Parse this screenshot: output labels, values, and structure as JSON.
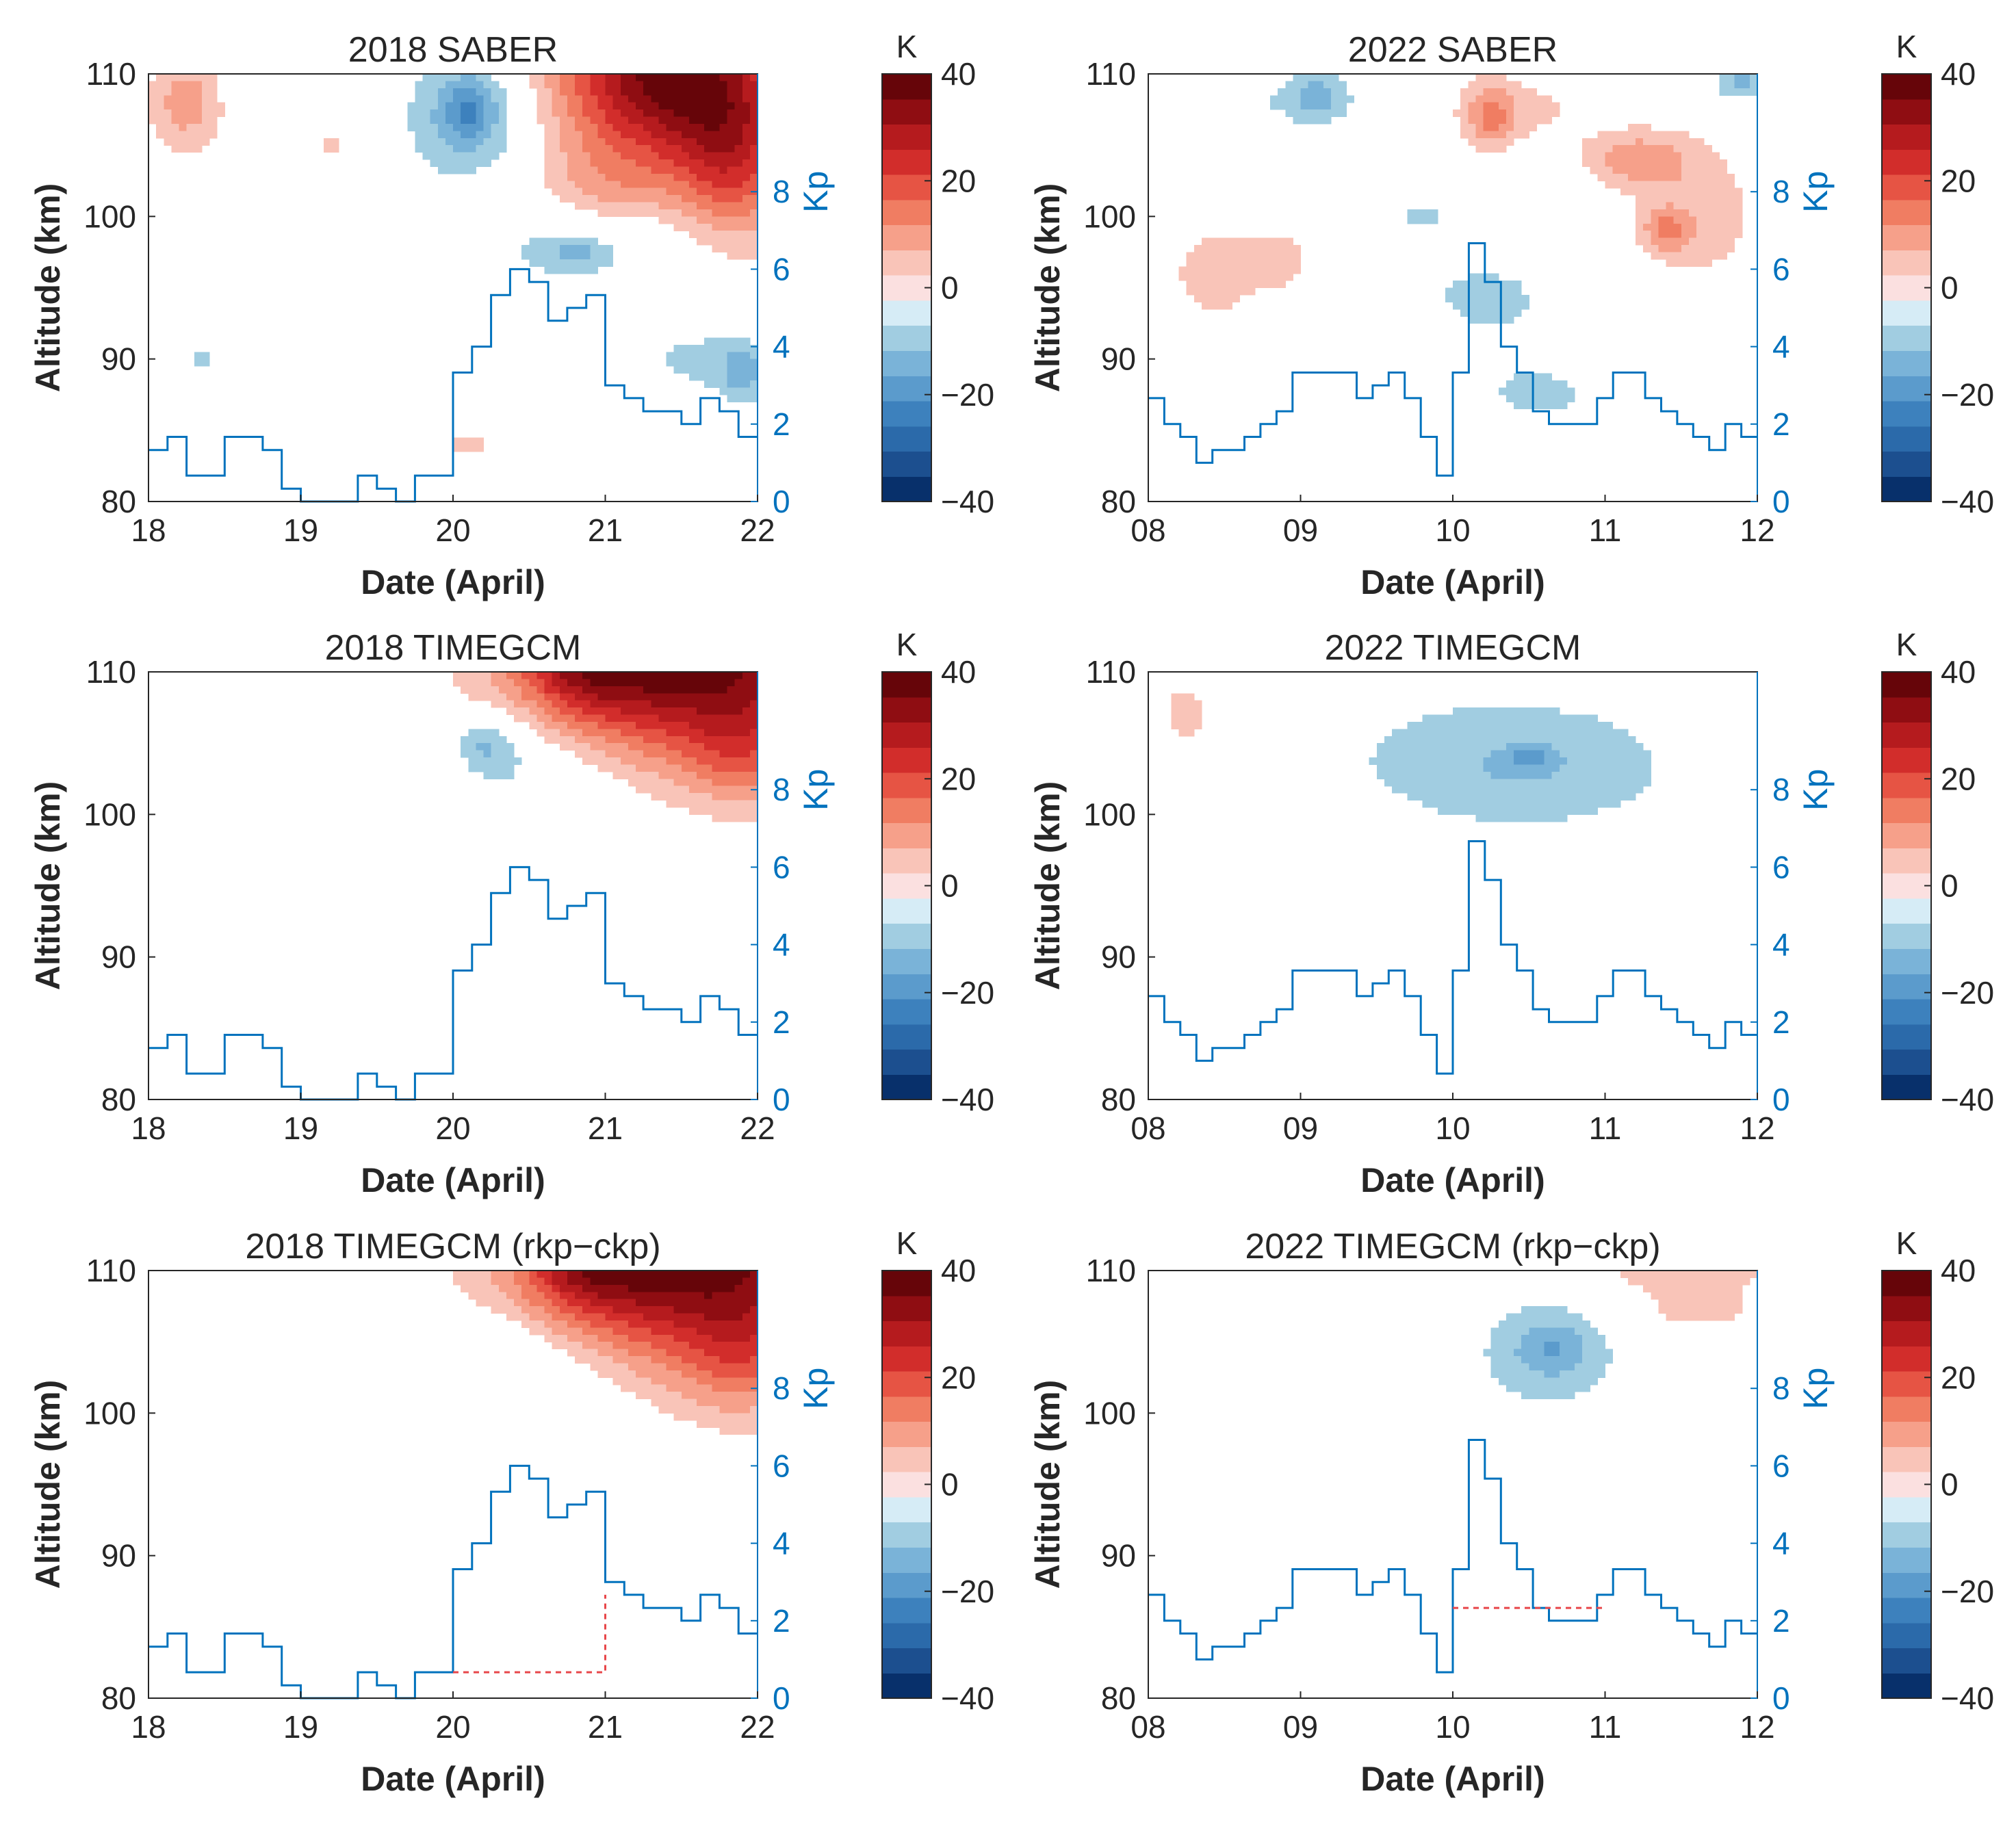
{
  "figure": {
    "colorbar": {
      "unit": "K",
      "levels": [
        -40,
        -35,
        -30,
        -25,
        -20,
        -15,
        -10,
        -5,
        0,
        5,
        10,
        15,
        20,
        25,
        30,
        35,
        40
      ],
      "ticks": [
        40,
        20,
        0,
        -20,
        -40
      ],
      "tick_labels": [
        "40",
        "20",
        "0",
        "−20",
        "−40"
      ],
      "colors": [
        "#08306b",
        "#1c4f8f",
        "#2b6aaa",
        "#3d81bd",
        "#5b9bcc",
        "#7ab3d8",
        "#a1cde1",
        "#d6ecf6",
        "#fbe0e0",
        "#f9c4b8",
        "#f6a08a",
        "#f07d62",
        "#e65444",
        "#d22d2b",
        "#b51b1e",
        "#8f0d12",
        "#660509"
      ]
    },
    "shared_axes": {
      "xlabel": "Date (April)",
      "ylabel": "Altitude (km)",
      "ylim": [
        80,
        110
      ],
      "yticks": [
        80,
        90,
        100,
        110
      ],
      "kp_label": "Kp",
      "kp_ticks": [
        0,
        2,
        4,
        6,
        8
      ],
      "kp_color": "#0072BD",
      "dashed_color": "#e8474a"
    }
  },
  "chart_data": [
    {
      "type": "heatmap",
      "title": "2018 SABER",
      "xticklabels": [
        "18",
        "19",
        "20",
        "21",
        "22"
      ],
      "xlim_days": [
        0,
        4
      ],
      "kp_steps": [
        1.33,
        1.67,
        0.67,
        0.67,
        1.67,
        1.67,
        1.33,
        0.33,
        0.0,
        0.0,
        0.0,
        0.67,
        0.33,
        0.0,
        0.67,
        0.67,
        3.33,
        4.0,
        5.33,
        6.0,
        5.67,
        4.67,
        5.0,
        5.33,
        3.0,
        2.67,
        2.33,
        2.33,
        2.0,
        2.67,
        2.33,
        1.67
      ],
      "kp_dashed": null,
      "blobs": [
        {
          "x": 0.25,
          "z": 108,
          "rx": 0.25,
          "rz": 3.5,
          "v": 13
        },
        {
          "x": 0.9,
          "z": 109,
          "rx": 0.35,
          "rz": 2.0,
          "v": -4
        },
        {
          "x": 2.1,
          "z": 107,
          "rx": 0.4,
          "rz": 4.5,
          "v": -13
        },
        {
          "x": 2.1,
          "z": 107.5,
          "rx": 0.15,
          "rz": 2.0,
          "v": -10
        },
        {
          "x": 3.4,
          "z": 110,
          "rx": 0.7,
          "rz": 6.0,
          "v": 42
        },
        {
          "x": 3.85,
          "z": 104,
          "rx": 0.4,
          "rz": 6.0,
          "v": 22
        },
        {
          "x": 3.0,
          "z": 102,
          "rx": 0.45,
          "rz": 3.5,
          "v": 9
        },
        {
          "x": 2.8,
          "z": 98,
          "rx": 0.8,
          "rz": 3.0,
          "v": -7
        },
        {
          "x": 2.8,
          "z": 97.5,
          "rx": 0.2,
          "rz": 1.0,
          "v": -7
        },
        {
          "x": 3.6,
          "z": 90,
          "rx": 0.5,
          "rz": 3.0,
          "v": -6
        },
        {
          "x": 3.9,
          "z": 89,
          "rx": 0.15,
          "rz": 2.0,
          "v": -10
        },
        {
          "x": 2.2,
          "z": 100,
          "rx": 0.2,
          "rz": 2.5,
          "v": 6
        },
        {
          "x": 1.2,
          "z": 105,
          "rx": 0.15,
          "rz": 1.5,
          "v": 6
        },
        {
          "x": 0.35,
          "z": 90,
          "rx": 0.15,
          "rz": 1.0,
          "v": -6
        },
        {
          "x": 0.1,
          "z": 99,
          "rx": 0.1,
          "rz": 2.0,
          "v": -5
        },
        {
          "x": 2.1,
          "z": 84,
          "rx": 0.3,
          "rz": 1.5,
          "v": 6
        },
        {
          "x": 1.9,
          "z": 92.5,
          "rx": 0.2,
          "rz": 1.0,
          "v": -5
        }
      ]
    },
    {
      "type": "heatmap",
      "title": "2022 SABER",
      "xticklabels": [
        "08",
        "09",
        "10",
        "11",
        "12"
      ],
      "xlim_days": [
        0,
        4
      ],
      "kp_steps": [
        2.67,
        2.0,
        1.67,
        1.0,
        1.33,
        1.33,
        1.67,
        2.0,
        2.33,
        3.33,
        3.33,
        3.33,
        3.33,
        2.67,
        3.0,
        3.33,
        2.67,
        1.67,
        0.67,
        3.33,
        6.67,
        5.67,
        4.0,
        3.33,
        2.33,
        2.0,
        2.0,
        2.0,
        2.67,
        3.33,
        3.33,
        2.67,
        2.33,
        2.0,
        1.67,
        1.33,
        2.0,
        1.67
      ],
      "kp_dashed": null,
      "blobs": [
        {
          "x": 1.0,
          "z": 108,
          "rx": 0.9,
          "rz": 2.5,
          "v": -5
        },
        {
          "x": 1.1,
          "z": 108.5,
          "rx": 0.15,
          "rz": 1.5,
          "v": -10
        },
        {
          "x": 0.45,
          "z": 96,
          "rx": 0.4,
          "rz": 4.5,
          "v": 7
        },
        {
          "x": 0.9,
          "z": 97,
          "rx": 0.2,
          "rz": 2.5,
          "v": 6
        },
        {
          "x": 2.35,
          "z": 107.5,
          "rx": 0.6,
          "rz": 2.5,
          "v": 7
        },
        {
          "x": 2.25,
          "z": 107,
          "rx": 0.15,
          "rz": 2.5,
          "v": 12
        },
        {
          "x": 3.2,
          "z": 104,
          "rx": 0.35,
          "rz": 2.0,
          "v": 12
        },
        {
          "x": 3.6,
          "z": 100,
          "rx": 0.45,
          "rz": 5.5,
          "v": 8
        },
        {
          "x": 3.4,
          "z": 99,
          "rx": 0.15,
          "rz": 1.5,
          "v": 12
        },
        {
          "x": 2.2,
          "z": 95,
          "rx": 0.9,
          "rz": 4.5,
          "v": -5
        },
        {
          "x": 2.6,
          "z": 87,
          "rx": 1.2,
          "rz": 5.0,
          "v": -5
        },
        {
          "x": 1.8,
          "z": 100,
          "rx": 0.1,
          "rz": 0.8,
          "v": -8
        },
        {
          "x": 3.8,
          "z": 109,
          "rx": 0.3,
          "rz": 1.5,
          "v": -5
        },
        {
          "x": 3.9,
          "z": 109.5,
          "rx": 0.1,
          "rz": 0.8,
          "v": -10
        }
      ]
    },
    {
      "type": "heatmap",
      "title": "2018 TIMEGCM",
      "xticklabels": [
        "18",
        "19",
        "20",
        "21",
        "22"
      ],
      "xlim_days": [
        0,
        4
      ],
      "kp_steps": [
        1.33,
        1.67,
        0.67,
        0.67,
        1.67,
        1.67,
        1.33,
        0.33,
        0.0,
        0.0,
        0.0,
        0.67,
        0.33,
        0.0,
        0.67,
        0.67,
        3.33,
        4.0,
        5.33,
        6.0,
        5.67,
        4.67,
        5.0,
        5.33,
        3.0,
        2.67,
        2.33,
        2.33,
        2.0,
        2.67,
        2.33,
        1.67
      ],
      "kp_dashed": null,
      "blobs": [
        {
          "x": 2.75,
          "z": 101,
          "rx": 0.45,
          "rz": 7.0,
          "v": -6
        },
        {
          "x": 2.35,
          "z": 104.5,
          "rx": 0.3,
          "rz": 3.0,
          "v": -6
        },
        {
          "x": 2.2,
          "z": 105,
          "rx": 0.2,
          "rz": 2.0,
          "v": -9
        },
        {
          "x": 3.6,
          "z": 111,
          "rx": 1.1,
          "rz": 7.0,
          "v": 44
        },
        {
          "x": 2.85,
          "z": 110.5,
          "rx": 0.4,
          "rz": 3.5,
          "v": 16
        },
        {
          "x": 3.9,
          "z": 104,
          "rx": 0.35,
          "rz": 3.5,
          "v": 10
        }
      ]
    },
    {
      "type": "heatmap",
      "title": "2022 TIMEGCM",
      "xticklabels": [
        "08",
        "09",
        "10",
        "11",
        "12"
      ],
      "xlim_days": [
        0,
        4
      ],
      "kp_steps": [
        2.67,
        2.0,
        1.67,
        1.0,
        1.33,
        1.33,
        1.67,
        2.0,
        2.33,
        3.33,
        3.33,
        3.33,
        3.33,
        2.67,
        3.0,
        3.33,
        2.67,
        1.67,
        0.67,
        3.33,
        6.67,
        5.67,
        4.0,
        3.33,
        2.33,
        2.0,
        2.0,
        2.0,
        2.67,
        3.33,
        3.33,
        2.67,
        2.33,
        2.0,
        1.67,
        1.33,
        2.0,
        1.67
      ],
      "kp_dashed": null,
      "blobs": [
        {
          "x": 2.3,
          "z": 104.5,
          "rx": 1.4,
          "rz": 5.5,
          "v": -6
        },
        {
          "x": 2.5,
          "z": 102.5,
          "rx": 0.8,
          "rz": 3.5,
          "v": -5
        },
        {
          "x": 2.5,
          "z": 104,
          "rx": 0.15,
          "rz": 0.7,
          "v": -9
        },
        {
          "x": 0.25,
          "z": 107,
          "rx": 0.25,
          "rz": 3.0,
          "v": 7
        },
        {
          "x": 3.4,
          "z": 110,
          "rx": 0.4,
          "rz": 1.5,
          "v": 6
        }
      ]
    },
    {
      "type": "heatmap",
      "title": "2018 TIMEGCM (rkp−ckp)",
      "xticklabels": [
        "18",
        "19",
        "20",
        "21",
        "22"
      ],
      "xlim_days": [
        0,
        4
      ],
      "kp_steps": [
        1.33,
        1.67,
        0.67,
        0.67,
        1.67,
        1.67,
        1.33,
        0.33,
        0.0,
        0.0,
        0.0,
        0.67,
        0.33,
        0.0,
        0.67,
        0.67,
        3.33,
        4.0,
        5.33,
        6.0,
        5.67,
        4.67,
        5.0,
        5.33,
        3.0,
        2.67,
        2.33,
        2.33,
        2.0,
        2.67,
        2.33,
        1.67
      ],
      "kp_dashed": {
        "level": 0.67,
        "x_start": 2.0,
        "x_end": 3.0
      },
      "blobs": [
        {
          "x": 2.75,
          "z": 101.5,
          "rx": 0.45,
          "rz": 7.5,
          "v": -6
        },
        {
          "x": 2.3,
          "z": 104.5,
          "rx": 0.3,
          "rz": 3.0,
          "v": -6
        },
        {
          "x": 3.6,
          "z": 111,
          "rx": 1.1,
          "rz": 7.5,
          "v": 44
        },
        {
          "x": 2.85,
          "z": 110.5,
          "rx": 0.4,
          "rz": 3.5,
          "v": 16
        },
        {
          "x": 3.9,
          "z": 103.5,
          "rx": 0.35,
          "rz": 4.0,
          "v": 10
        }
      ]
    },
    {
      "type": "heatmap",
      "title": "2022 TIMEGCM (rkp−ckp)",
      "xticklabels": [
        "08",
        "09",
        "10",
        "11",
        "12"
      ],
      "xlim_days": [
        0,
        4
      ],
      "kp_steps": [
        2.67,
        2.0,
        1.67,
        1.0,
        1.33,
        1.33,
        1.67,
        2.0,
        2.33,
        3.33,
        3.33,
        3.33,
        3.33,
        2.67,
        3.0,
        3.33,
        2.67,
        1.67,
        0.67,
        3.33,
        6.67,
        5.67,
        4.0,
        3.33,
        2.33,
        2.0,
        2.0,
        2.0,
        2.67,
        3.33,
        3.33,
        2.67,
        2.33,
        2.0,
        1.67,
        1.33,
        2.0,
        1.67
      ],
      "kp_dashed": {
        "level": 2.33,
        "x_start": 2.0,
        "x_end": 3.0
      },
      "blobs": [
        {
          "x": 2.6,
          "z": 104,
          "rx": 0.7,
          "rz": 6.0,
          "v": -6
        },
        {
          "x": 2.65,
          "z": 104.5,
          "rx": 0.25,
          "rz": 2.0,
          "v": -10
        },
        {
          "x": 3.5,
          "z": 111,
          "rx": 0.6,
          "rz": 3.0,
          "v": 12
        },
        {
          "x": 3.6,
          "z": 107,
          "rx": 0.4,
          "rz": 1.5,
          "v": 6
        }
      ]
    }
  ]
}
